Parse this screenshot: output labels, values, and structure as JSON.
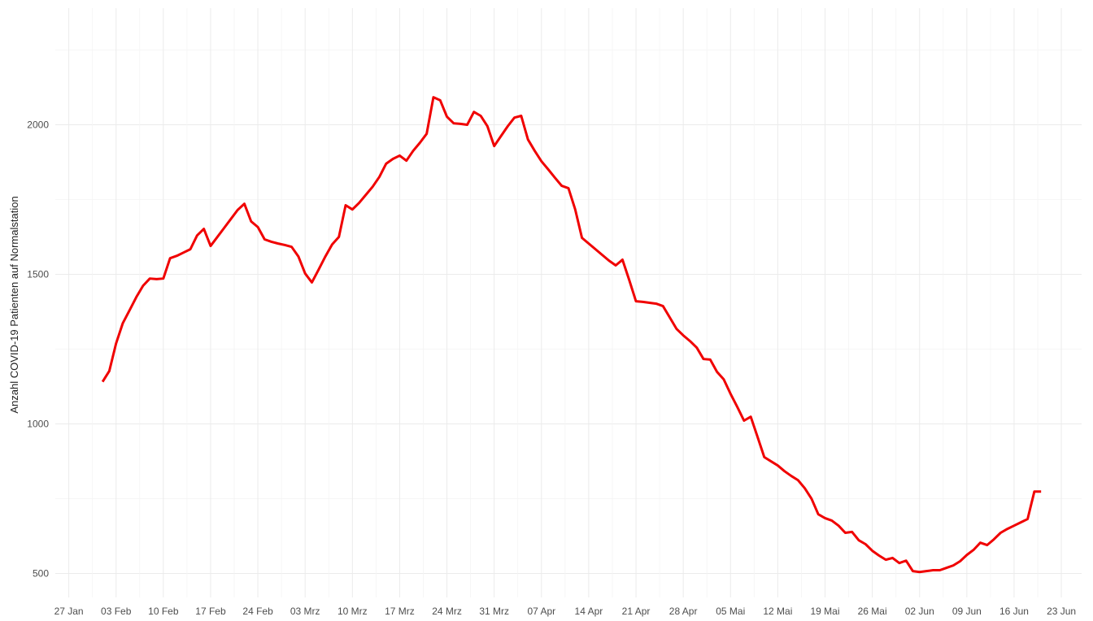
{
  "chart_data": {
    "type": "line",
    "y_label": "Anzahl COVID-19 Patienten auf Normalstation",
    "x": [
      "02-01",
      "02-02",
      "02-03",
      "02-04",
      "02-05",
      "02-06",
      "02-07",
      "02-08",
      "02-09",
      "02-10",
      "02-11",
      "02-12",
      "02-13",
      "02-14",
      "02-15",
      "02-16",
      "02-17",
      "02-18",
      "02-19",
      "02-20",
      "02-21",
      "02-22",
      "02-23",
      "02-24",
      "02-25",
      "02-26",
      "02-27",
      "02-28",
      "03-01",
      "03-02",
      "03-03",
      "03-04",
      "03-05",
      "03-06",
      "03-07",
      "03-08",
      "03-09",
      "03-10",
      "03-11",
      "03-12",
      "03-13",
      "03-14",
      "03-15",
      "03-16",
      "03-17",
      "03-18",
      "03-19",
      "03-20",
      "03-21",
      "03-22",
      "03-23",
      "03-24",
      "03-25",
      "03-26",
      "03-27",
      "03-28",
      "03-29",
      "03-30",
      "03-31",
      "04-01",
      "04-02",
      "04-03",
      "04-04",
      "04-05",
      "04-06",
      "04-07",
      "04-08",
      "04-09",
      "04-10",
      "04-11",
      "04-12",
      "04-13",
      "04-14",
      "04-15",
      "04-16",
      "04-17",
      "04-18",
      "04-19",
      "04-20",
      "04-21",
      "04-22",
      "04-23",
      "04-24",
      "04-25",
      "04-26",
      "04-27",
      "04-28",
      "04-29",
      "04-30",
      "05-01",
      "05-02",
      "05-03",
      "05-04",
      "05-05",
      "05-06",
      "05-07",
      "05-08",
      "05-09",
      "05-10",
      "05-11",
      "05-12",
      "05-13",
      "05-14",
      "05-15",
      "05-16",
      "05-17",
      "05-18",
      "05-19",
      "05-20",
      "05-21",
      "05-22",
      "05-23",
      "05-24",
      "05-25",
      "05-26",
      "05-27",
      "05-28",
      "05-29",
      "05-30",
      "05-31",
      "06-01",
      "06-02",
      "06-03",
      "06-04",
      "06-05",
      "06-06",
      "06-07",
      "06-08",
      "06-09",
      "06-10",
      "06-11",
      "06-12",
      "06-13",
      "06-14",
      "06-15",
      "06-16",
      "06-17",
      "06-18",
      "06-19",
      "06-20"
    ],
    "series": [
      {
        "color": "#f00000",
        "values": [
          1141,
          1177,
          1269,
          1337,
          1380,
          1424,
          1462,
          1486,
          1484,
          1486,
          1554,
          1562,
          1573,
          1584,
          1630,
          1652,
          1595,
          1625,
          1655,
          1685,
          1715,
          1736,
          1677,
          1658,
          1617,
          1609,
          1603,
          1598,
          1592,
          1560,
          1503,
          1473,
          1516,
          1560,
          1600,
          1625,
          1731,
          1717,
          1739,
          1766,
          1793,
          1826,
          1870,
          1886,
          1897,
          1880,
          1913,
          1940,
          1970,
          2092,
          2082,
          2027,
          2005,
          2003,
          2000,
          2043,
          2030,
          1995,
          1929,
          1962,
          1995,
          2024,
          2030,
          1951,
          1913,
          1878,
          1851,
          1823,
          1796,
          1788,
          1717,
          1622,
          1603,
          1584,
          1565,
          1546,
          1530,
          1549,
          1481,
          1410,
          1408,
          1405,
          1402,
          1394,
          1356,
          1318,
          1296,
          1277,
          1255,
          1217,
          1215,
          1174,
          1149,
          1101,
          1057,
          1011,
          1024,
          957,
          889,
          875,
          861,
          842,
          826,
          812,
          785,
          750,
          698,
          685,
          677,
          660,
          636,
          639,
          611,
          598,
          576,
          560,
          546,
          552,
          535,
          543,
          508,
          505,
          508,
          511,
          511,
          519,
          527,
          541,
          562,
          579,
          603,
          595,
          614,
          636,
          649,
          660,
          671,
          682,
          774,
          774
        ]
      }
    ],
    "xlim": [
      "01-25",
      "06-26"
    ],
    "xticks": [
      {
        "value": "01-27",
        "label": "27 Jan"
      },
      {
        "value": "02-03",
        "label": "03 Feb"
      },
      {
        "value": "02-10",
        "label": "10 Feb"
      },
      {
        "value": "02-17",
        "label": "17 Feb"
      },
      {
        "value": "02-24",
        "label": "24 Feb"
      },
      {
        "value": "03-03",
        "label": "03 Mrz"
      },
      {
        "value": "03-10",
        "label": "10 Mrz"
      },
      {
        "value": "03-17",
        "label": "17 Mrz"
      },
      {
        "value": "03-24",
        "label": "24 Mrz"
      },
      {
        "value": "03-31",
        "label": "31 Mrz"
      },
      {
        "value": "04-07",
        "label": "07 Apr"
      },
      {
        "value": "04-14",
        "label": "14 Apr"
      },
      {
        "value": "04-21",
        "label": "21 Apr"
      },
      {
        "value": "04-28",
        "label": "28 Apr"
      },
      {
        "value": "05-05",
        "label": "05 Mai"
      },
      {
        "value": "05-12",
        "label": "12 Mai"
      },
      {
        "value": "05-19",
        "label": "19 Mai"
      },
      {
        "value": "05-26",
        "label": "26 Mai"
      },
      {
        "value": "06-02",
        "label": "02 Jun"
      },
      {
        "value": "06-09",
        "label": "09 Jun"
      },
      {
        "value": "06-16",
        "label": "16 Jun"
      },
      {
        "value": "06-23",
        "label": "23 Jun"
      }
    ],
    "ylim": [
      420,
      2390
    ],
    "yticks": [
      500,
      1000,
      1500,
      2000
    ],
    "grid": true
  }
}
